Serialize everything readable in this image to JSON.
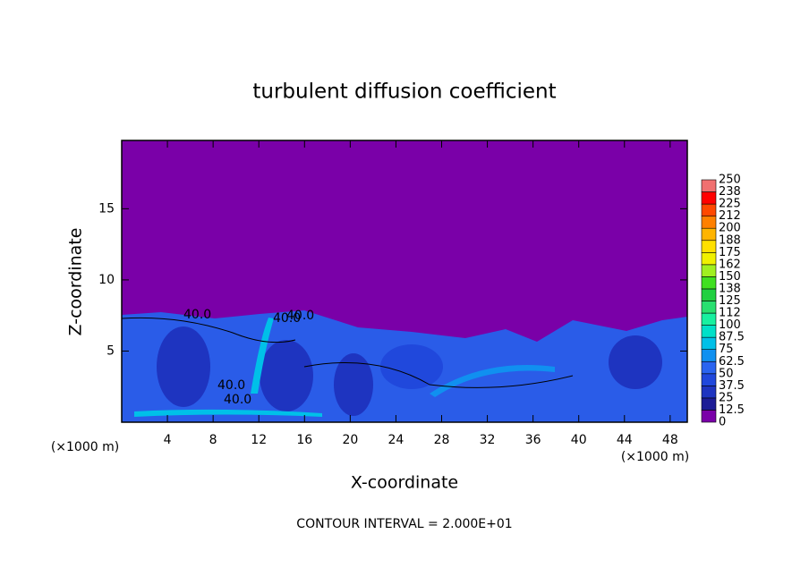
{
  "chart_data": {
    "type": "heatmap",
    "title": "turbulent diffusion coefficient",
    "xlabel": "X-coordinate",
    "ylabel": "Z-coordinate",
    "x_unit_left": "(×1000 m)",
    "x_unit_right": "(×1000 m)",
    "footnote": "CONTOUR INTERVAL = 2.000E+01",
    "xlim": [
      0,
      49.5
    ],
    "xticks": [
      4,
      8,
      12,
      16,
      20,
      24,
      28,
      32,
      36,
      40,
      44,
      48
    ],
    "ylim": [
      0,
      19.8
    ],
    "yticks": [
      5,
      10,
      15
    ],
    "contour_labels": [
      "40.0",
      "40.0",
      "40.0",
      "40.0",
      "40.0"
    ],
    "colorbar": {
      "levels": [
        0,
        12.5,
        25,
        37.5,
        50,
        62.5,
        75,
        87.5,
        100,
        {
          "value": 112.5,
          "label": "112"
        },
        125,
        {
          "value": 137.5,
          "label": "138"
        },
        150,
        {
          "value": 162.5,
          "label": "162"
        },
        175,
        {
          "value": 187.5,
          "label": "188"
        },
        200,
        {
          "value": 212.5,
          "label": "212"
        },
        225,
        {
          "value": 237.5,
          "label": "238"
        },
        250
      ],
      "colors": [
        "#7a00a8",
        "#1c1c96",
        "#1e34c0",
        "#2048dc",
        "#2a64f0",
        "#1090f0",
        "#00c0e8",
        "#00e0c8",
        "#18f0a0",
        "#28e070",
        "#20d040",
        "#40e020",
        "#a0f020",
        "#f0f000",
        "#ffe000",
        "#ffb400",
        "#ff8000",
        "#ff4800",
        "#ff0000",
        "#f07070"
      ]
    }
  }
}
